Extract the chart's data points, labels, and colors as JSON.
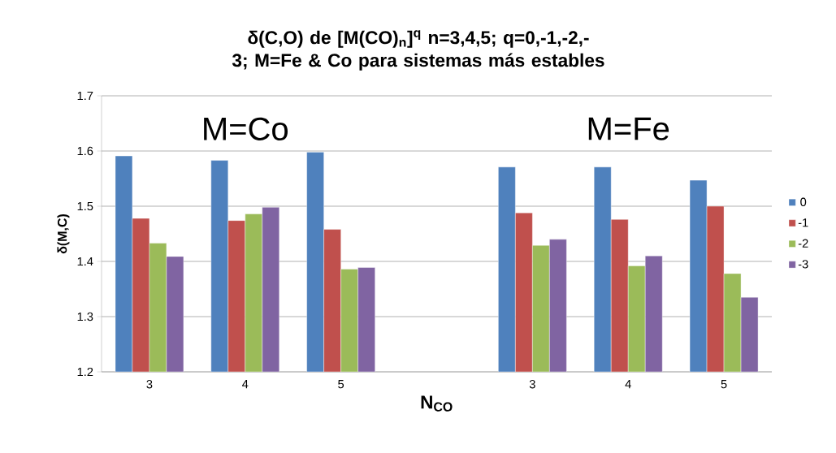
{
  "chart_data": {
    "type": "bar",
    "title": "δ(C,O) de [M(CO)$_{n}$]$^{q}$ n=3,4,5; q=0,-1,-2,-3; M=Fe & Co  para sistemas más estables",
    "xlabel": "N$_{CO}$",
    "ylabel": "δ(M,C)",
    "categories": [
      "3",
      "4",
      "5",
      null,
      "3",
      "4",
      "5"
    ],
    "series": [
      {
        "name": "0",
        "color": "#4f81bd",
        "values": [
          1.591,
          1.583,
          1.598,
          null,
          1.571,
          1.571,
          1.547
        ]
      },
      {
        "name": "-1",
        "color": "#c0504d",
        "values": [
          1.478,
          1.474,
          1.458,
          null,
          1.488,
          1.476,
          1.5
        ]
      },
      {
        "name": "-2",
        "color": "#9bbb59",
        "values": [
          1.433,
          1.486,
          1.386,
          null,
          1.429,
          1.392,
          1.378
        ]
      },
      {
        "name": "-3",
        "color": "#8064a2",
        "values": [
          1.409,
          1.498,
          1.389,
          null,
          1.44,
          1.41,
          1.335
        ]
      }
    ],
    "ylim": [
      1.2,
      1.7
    ],
    "yticks": [
      1.2,
      1.3,
      1.4,
      1.5,
      1.6,
      1.7
    ],
    "annotations": [
      "M=Co",
      "M=Fe"
    ],
    "grid": "y",
    "legend": "right"
  }
}
